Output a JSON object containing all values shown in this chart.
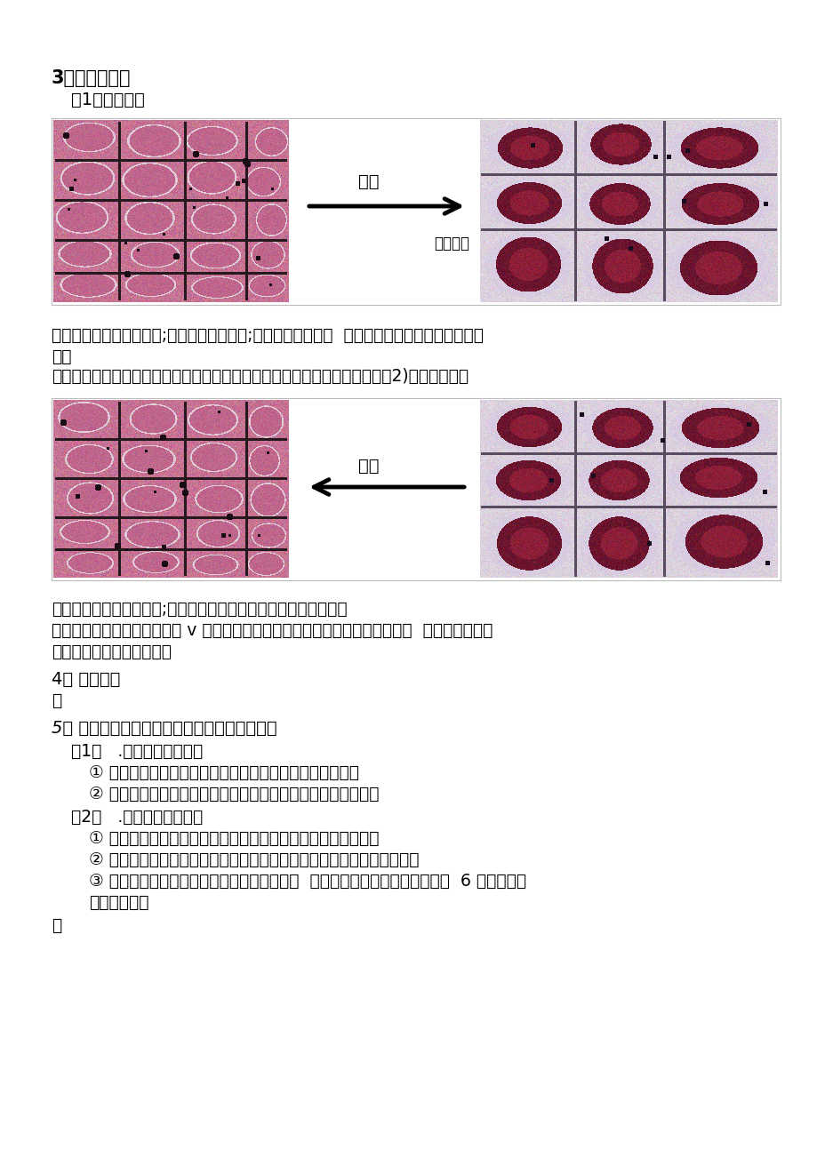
{
  "bg_color": "#ffffff",
  "title_3": "3、结果与分析",
  "subtitle_1": "（1）质壁分离",
  "label_shishui": "失水",
  "label_waijie": "外界溶液",
  "text_block1_line1": "现象：液泡体积（变小）;液泡颜色（变深）;细胞大小基本不变  内因：原生质层收缩性大于细胞",
  "text_block1_line2": "壁。",
  "text_block1_line3": "条件、外因：当外界溶液浓度）细胞液浓度时，植物渗透失水，体积缩小。（2)质壁分离复原",
  "label_xishui": "吸水",
  "text_block2_line1": "现象：液泡体积（变大）;液泡颜色（变浅），细胞大小基本不变。",
  "text_block2_line2": "条件、外因：当外界溶液浓度 v 细胞液浓度，植物细胞通过渗透作用吸水，发生  质壁分离的细胞",
  "text_block2_line3": "会出现质壁分离复原现象。",
  "title_4": "4、 易错警示",
  "text_4": "略",
  "title_5": "5、 判断细胞是否发生质壁分离及复原时的规律",
  "subtitle_5_1": "（1）   .从细胞角度分析：",
  "item_5_1_1": "① 具有中央大液泡的成熟植物细胞才可发生质壁分离现象。",
  "item_5_1_2": "② 死细胞、动物细胞及未成熟的植物细胞不发生质壁分离现象。",
  "subtitle_5_2": "（2）   .从溶液角度分析：",
  "item_5_2_1": "① 在溶质可穿膜的溶液中细胞会发生质壁分离后自动复原现象。",
  "item_5_2_2": "② 在溶质不能穿膜的溶液中细胞只会发生质壁分离现象，不能自动复原。",
  "item_5_2_3": "③ 在高浓度溶液中细胞可发生质壁分离现象，  但会因过度失水而死亡不再复原  6 质壁分离实",
  "item_5_2_4": "验的拓展应用",
  "text_5_end": "略"
}
